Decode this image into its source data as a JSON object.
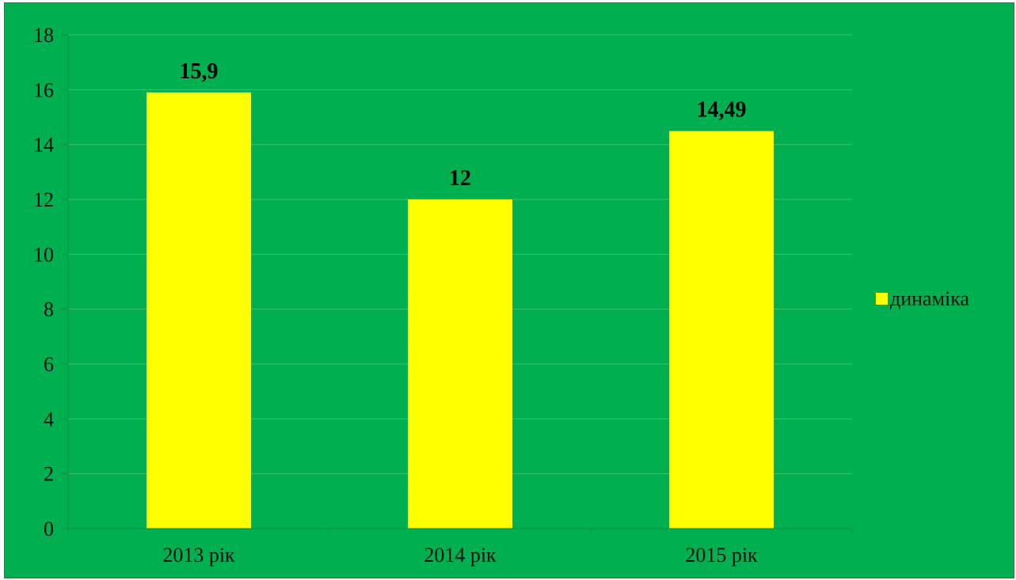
{
  "colors": {
    "background": "#00b050",
    "bar": "#ffff00",
    "gridline": "#3fbf68",
    "axis": "#1a8a3c",
    "text": "#111111"
  },
  "chart_data": {
    "type": "bar",
    "categories": [
      "2013 рік",
      "2014 рік",
      "2015 рік"
    ],
    "series": [
      {
        "name": "динаміка",
        "values": [
          15.9,
          12,
          14.49
        ],
        "labels": [
          "15,9",
          "12",
          "14,49"
        ]
      }
    ],
    "ylim": [
      0,
      18
    ],
    "yticks": [
      0,
      2,
      4,
      6,
      8,
      10,
      12,
      14,
      16,
      18
    ],
    "grid": true,
    "legend_position": "right"
  }
}
